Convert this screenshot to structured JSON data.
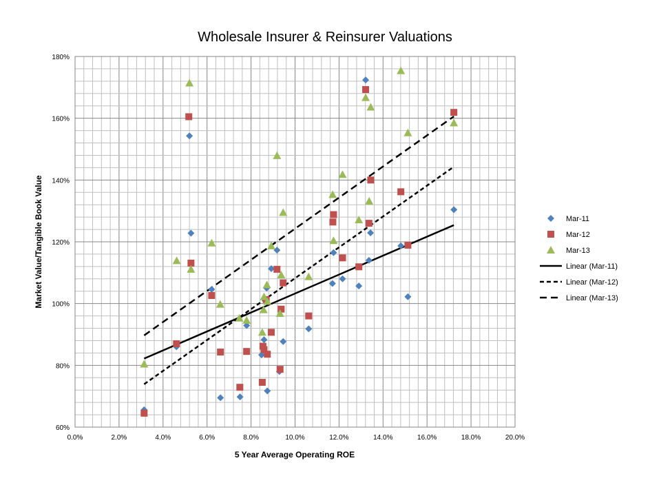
{
  "chart_data": {
    "type": "scatter",
    "title": "Wholesale Insurer & Reinsurer Valuations",
    "xlabel": "5 Year Average Operating ROE",
    "ylabel": "Market Value/Tangible Book Value",
    "xlim": [
      0,
      20
    ],
    "ylim": [
      60,
      180
    ],
    "x_ticks": [
      "0.0%",
      "2.0%",
      "4.0%",
      "6.0%",
      "8.0%",
      "10.0%",
      "12.0%",
      "14.0%",
      "16.0%",
      "18.0%",
      "20.0%"
    ],
    "y_ticks": [
      "60%",
      "80%",
      "100%",
      "120%",
      "140%",
      "160%",
      "180%"
    ],
    "grid": true,
    "legend_position": "right",
    "series": [
      {
        "name": "Mar-11",
        "marker": "diamond",
        "color": "#4F81BD",
        "points": [
          [
            3.14,
            65.6
          ],
          [
            4.61,
            86.0
          ],
          [
            5.2,
            154.3
          ],
          [
            5.27,
            122.8
          ],
          [
            6.21,
            104.6
          ],
          [
            6.61,
            69.5
          ],
          [
            7.5,
            69.8
          ],
          [
            7.8,
            92.9
          ],
          [
            8.48,
            83.4
          ],
          [
            8.59,
            88.3
          ],
          [
            8.71,
            105.0
          ],
          [
            8.74,
            71.7
          ],
          [
            8.92,
            111.3
          ],
          [
            9.18,
            117.3
          ],
          [
            9.29,
            78.0
          ],
          [
            9.46,
            87.7
          ],
          [
            10.62,
            91.8
          ],
          [
            11.7,
            106.5
          ],
          [
            11.75,
            116.5
          ],
          [
            12.16,
            108.0
          ],
          [
            12.9,
            105.7
          ],
          [
            13.21,
            172.4
          ],
          [
            13.36,
            114.0
          ],
          [
            13.43,
            122.9
          ],
          [
            14.81,
            118.7
          ],
          [
            15.13,
            102.2
          ],
          [
            17.22,
            130.4
          ]
        ]
      },
      {
        "name": "Mar-12",
        "marker": "square",
        "color": "#C0504D",
        "points": [
          [
            3.14,
            64.5
          ],
          [
            4.61,
            87.0
          ],
          [
            5.17,
            160.5
          ],
          [
            5.27,
            113.1
          ],
          [
            6.21,
            102.6
          ],
          [
            6.61,
            84.3
          ],
          [
            7.49,
            72.9
          ],
          [
            7.8,
            84.5
          ],
          [
            8.51,
            74.5
          ],
          [
            8.54,
            86.2
          ],
          [
            8.59,
            85.1
          ],
          [
            8.69,
            101.3
          ],
          [
            8.74,
            83.6
          ],
          [
            8.92,
            90.7
          ],
          [
            9.18,
            111.1
          ],
          [
            9.32,
            78.7
          ],
          [
            9.37,
            98.2
          ],
          [
            9.46,
            106.7
          ],
          [
            10.62,
            96.0
          ],
          [
            11.72,
            126.4
          ],
          [
            11.75,
            128.8
          ],
          [
            12.16,
            114.8
          ],
          [
            12.9,
            111.9
          ],
          [
            13.21,
            169.3
          ],
          [
            13.36,
            126.0
          ],
          [
            13.44,
            140.0
          ],
          [
            14.81,
            136.2
          ],
          [
            15.13,
            118.9
          ],
          [
            17.22,
            161.9
          ]
        ]
      },
      {
        "name": "Mar-13",
        "marker": "triangle",
        "color": "#9BBB59",
        "points": [
          [
            3.14,
            80.4
          ],
          [
            4.62,
            113.9
          ],
          [
            5.2,
            171.4
          ],
          [
            5.27,
            111.1
          ],
          [
            6.21,
            119.6
          ],
          [
            6.6,
            99.8
          ],
          [
            7.47,
            95.3
          ],
          [
            7.8,
            94.6
          ],
          [
            8.51,
            90.7
          ],
          [
            8.57,
            98.0
          ],
          [
            8.59,
            102.2
          ],
          [
            8.72,
            106.1
          ],
          [
            8.74,
            100.7
          ],
          [
            8.92,
            118.7
          ],
          [
            9.18,
            147.9
          ],
          [
            9.32,
            96.8
          ],
          [
            9.37,
            109.3
          ],
          [
            9.46,
            129.5
          ],
          [
            10.62,
            108.7
          ],
          [
            11.71,
            135.3
          ],
          [
            11.75,
            120.4
          ],
          [
            12.16,
            141.8
          ],
          [
            12.9,
            127.1
          ],
          [
            13.21,
            166.7
          ],
          [
            13.37,
            133.2
          ],
          [
            13.44,
            163.6
          ],
          [
            14.81,
            175.4
          ],
          [
            15.13,
            155.3
          ],
          [
            17.22,
            158.5
          ]
        ]
      }
    ],
    "trendlines": [
      {
        "name": "Linear (Mar-11)",
        "style": "solid",
        "color": "#000000",
        "x": [
          3.14,
          17.22
        ],
        "y": [
          82.2,
          125.4
        ]
      },
      {
        "name": "Linear (Mar-12)",
        "style": "dotted-dash",
        "color": "#000000",
        "x": [
          3.14,
          17.22
        ],
        "y": [
          73.9,
          144.3
        ]
      },
      {
        "name": "Linear (Mar-13)",
        "style": "long-dash",
        "color": "#000000",
        "x": [
          3.14,
          17.22
        ],
        "y": [
          89.7,
          160.6
        ]
      }
    ]
  }
}
